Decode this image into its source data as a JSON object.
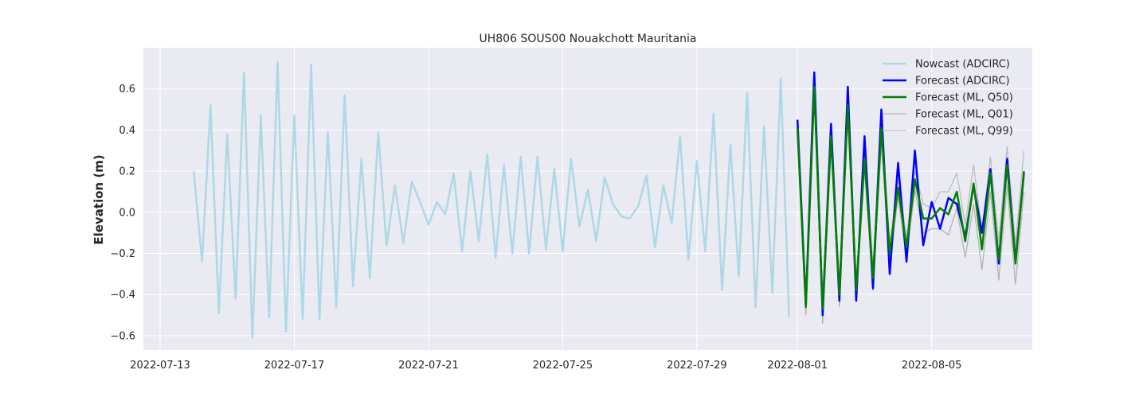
{
  "chart_data": {
    "type": "line",
    "title": "UH806 SOUS00 Nouakchott Mauritania",
    "xlabel": "",
    "ylabel": "Elevation (m)",
    "x_range": [
      "2022-07-12T12:00",
      "2022-08-08T00:00"
    ],
    "ylim": [
      -0.67,
      0.8
    ],
    "grid": true,
    "legend_position": "top-right",
    "x_ticks": [
      "2022-07-13",
      "2022-07-17",
      "2022-07-21",
      "2022-07-25",
      "2022-07-29",
      "2022-08-01",
      "2022-08-05"
    ],
    "y_ticks": [
      -0.6,
      -0.4,
      -0.2,
      0.0,
      0.2,
      0.4,
      0.6
    ],
    "y_tick_labels": [
      "−0.6",
      "−0.4",
      "−0.2",
      "0.0",
      "0.2",
      "0.4",
      "0.6"
    ],
    "colors": {
      "plot_background": "#eaeaf2",
      "grid": "#ffffff"
    },
    "series": [
      {
        "name": "Nowcast (ADCIRC)",
        "color": "#add8e6",
        "width": 2.5,
        "x": [
          "2022-07-14T00:00",
          "2022-07-14T06:00",
          "2022-07-14T12:00",
          "2022-07-14T18:00",
          "2022-07-15T00:00",
          "2022-07-15T06:00",
          "2022-07-15T12:00",
          "2022-07-15T18:00",
          "2022-07-16T00:00",
          "2022-07-16T06:00",
          "2022-07-16T12:00",
          "2022-07-16T18:00",
          "2022-07-17T00:00",
          "2022-07-17T06:00",
          "2022-07-17T12:00",
          "2022-07-17T18:00",
          "2022-07-18T00:00",
          "2022-07-18T06:00",
          "2022-07-18T12:00",
          "2022-07-18T18:00",
          "2022-07-19T00:00",
          "2022-07-19T06:00",
          "2022-07-19T12:00",
          "2022-07-19T18:00",
          "2022-07-20T00:00",
          "2022-07-20T06:00",
          "2022-07-20T12:00",
          "2022-07-20T18:00",
          "2022-07-21T00:00",
          "2022-07-21T06:00",
          "2022-07-21T12:00",
          "2022-07-21T18:00",
          "2022-07-22T00:00",
          "2022-07-22T06:00",
          "2022-07-22T12:00",
          "2022-07-22T18:00",
          "2022-07-23T00:00",
          "2022-07-23T06:00",
          "2022-07-23T12:00",
          "2022-07-23T18:00",
          "2022-07-24T00:00",
          "2022-07-24T06:00",
          "2022-07-24T12:00",
          "2022-07-24T18:00",
          "2022-07-25T00:00",
          "2022-07-25T06:00",
          "2022-07-25T12:00",
          "2022-07-25T18:00",
          "2022-07-26T00:00",
          "2022-07-26T06:00",
          "2022-07-26T12:00",
          "2022-07-26T18:00",
          "2022-07-27T00:00",
          "2022-07-27T06:00",
          "2022-07-27T12:00",
          "2022-07-27T18:00",
          "2022-07-28T00:00",
          "2022-07-28T06:00",
          "2022-07-28T12:00",
          "2022-07-28T18:00",
          "2022-07-29T00:00",
          "2022-07-29T06:00",
          "2022-07-29T12:00",
          "2022-07-29T18:00",
          "2022-07-30T00:00",
          "2022-07-30T06:00",
          "2022-07-30T12:00",
          "2022-07-30T18:00",
          "2022-07-31T00:00",
          "2022-07-31T06:00",
          "2022-07-31T12:00",
          "2022-07-31T18:00"
        ],
        "values": [
          0.2,
          -0.24,
          0.52,
          -0.49,
          0.38,
          -0.42,
          0.68,
          -0.61,
          0.47,
          -0.51,
          0.73,
          -0.58,
          0.47,
          -0.52,
          0.72,
          -0.52,
          0.39,
          -0.46,
          0.57,
          -0.36,
          0.26,
          -0.32,
          0.39,
          -0.16,
          0.13,
          -0.15,
          0.15,
          0.05,
          -0.06,
          0.05,
          -0.01,
          0.19,
          -0.19,
          0.2,
          -0.14,
          0.28,
          -0.22,
          0.23,
          -0.2,
          0.27,
          -0.2,
          0.27,
          -0.18,
          0.21,
          -0.19,
          0.26,
          -0.07,
          0.11,
          -0.14,
          0.17,
          0.04,
          -0.02,
          -0.03,
          0.03,
          0.18,
          -0.17,
          0.13,
          -0.05,
          0.37,
          -0.23,
          0.25,
          -0.19,
          0.48,
          -0.38,
          0.33,
          -0.31,
          0.58,
          -0.46,
          0.42,
          -0.39,
          0.65,
          -0.51
        ]
      },
      {
        "name": "Forecast (ADCIRC)",
        "color": "#0000ff",
        "width": 2.5,
        "x": [
          "2022-08-01T00:00",
          "2022-08-01T06:00",
          "2022-08-01T12:00",
          "2022-08-01T18:00",
          "2022-08-02T00:00",
          "2022-08-02T06:00",
          "2022-08-02T12:00",
          "2022-08-02T18:00",
          "2022-08-03T00:00",
          "2022-08-03T06:00",
          "2022-08-03T12:00",
          "2022-08-03T18:00",
          "2022-08-04T00:00",
          "2022-08-04T06:00",
          "2022-08-04T12:00",
          "2022-08-04T18:00",
          "2022-08-05T00:00",
          "2022-08-05T06:00",
          "2022-08-05T12:00",
          "2022-08-05T18:00",
          "2022-08-06T00:00",
          "2022-08-06T06:00",
          "2022-08-06T12:00",
          "2022-08-06T18:00",
          "2022-08-07T00:00",
          "2022-08-07T06:00",
          "2022-08-07T12:00",
          "2022-08-07T18:00"
        ],
        "values": [
          0.45,
          -0.45,
          0.68,
          -0.5,
          0.43,
          -0.43,
          0.61,
          -0.43,
          0.37,
          -0.37,
          0.5,
          -0.3,
          0.24,
          -0.24,
          0.3,
          -0.16,
          0.05,
          -0.08,
          0.07,
          0.04,
          -0.12,
          0.13,
          -0.1,
          0.21,
          -0.25,
          0.26,
          -0.24,
          0.19
        ]
      },
      {
        "name": "Forecast (ML, Q50)",
        "color": "#008000",
        "width": 2.5,
        "x": [
          "2022-08-01T00:00",
          "2022-08-01T06:00",
          "2022-08-01T12:00",
          "2022-08-01T18:00",
          "2022-08-02T00:00",
          "2022-08-02T06:00",
          "2022-08-02T12:00",
          "2022-08-02T18:00",
          "2022-08-03T00:00",
          "2022-08-03T06:00",
          "2022-08-03T12:00",
          "2022-08-03T18:00",
          "2022-08-04T00:00",
          "2022-08-04T06:00",
          "2022-08-04T12:00",
          "2022-08-04T18:00",
          "2022-08-05T00:00",
          "2022-08-05T06:00",
          "2022-08-05T12:00",
          "2022-08-05T18:00",
          "2022-08-06T00:00",
          "2022-08-06T06:00",
          "2022-08-06T12:00",
          "2022-08-06T18:00",
          "2022-08-07T00:00",
          "2022-08-07T06:00",
          "2022-08-07T12:00",
          "2022-08-07T18:00"
        ],
        "values": [
          0.41,
          -0.46,
          0.61,
          -0.47,
          0.37,
          -0.4,
          0.52,
          -0.38,
          0.26,
          -0.32,
          0.41,
          -0.2,
          0.12,
          -0.17,
          0.16,
          -0.03,
          -0.03,
          0.02,
          -0.01,
          0.1,
          -0.14,
          0.14,
          -0.18,
          0.19,
          -0.23,
          0.23,
          -0.25,
          0.2
        ]
      },
      {
        "name": "Forecast (ML, Q01)",
        "color": "#b3b3b3",
        "width": 1.3,
        "x": [
          "2022-08-01T00:00",
          "2022-08-01T06:00",
          "2022-08-01T12:00",
          "2022-08-01T18:00",
          "2022-08-02T00:00",
          "2022-08-02T06:00",
          "2022-08-02T12:00",
          "2022-08-02T18:00",
          "2022-08-03T00:00",
          "2022-08-03T06:00",
          "2022-08-03T12:00",
          "2022-08-03T18:00",
          "2022-08-04T00:00",
          "2022-08-04T06:00",
          "2022-08-04T12:00",
          "2022-08-04T18:00",
          "2022-08-05T00:00",
          "2022-08-05T06:00",
          "2022-08-05T12:00",
          "2022-08-05T18:00",
          "2022-08-06T00:00",
          "2022-08-06T06:00",
          "2022-08-06T12:00",
          "2022-08-06T18:00",
          "2022-08-07T00:00",
          "2022-08-07T06:00",
          "2022-08-07T12:00",
          "2022-08-07T18:00"
        ],
        "values": [
          0.36,
          -0.5,
          0.56,
          -0.54,
          0.32,
          -0.46,
          0.47,
          -0.43,
          0.21,
          -0.38,
          0.33,
          -0.25,
          0.07,
          -0.22,
          0.11,
          -0.1,
          -0.08,
          -0.08,
          -0.11,
          0.02,
          -0.22,
          0.04,
          -0.28,
          0.1,
          -0.33,
          0.13,
          -0.35,
          0.1
        ]
      },
      {
        "name": "Forecast (ML, Q99)",
        "color": "#bdbdbd",
        "width": 1.3,
        "x": [
          "2022-08-01T00:00",
          "2022-08-01T06:00",
          "2022-08-01T12:00",
          "2022-08-01T18:00",
          "2022-08-02T00:00",
          "2022-08-02T06:00",
          "2022-08-02T12:00",
          "2022-08-02T18:00",
          "2022-08-03T00:00",
          "2022-08-03T06:00",
          "2022-08-03T12:00",
          "2022-08-03T18:00",
          "2022-08-04T00:00",
          "2022-08-04T06:00",
          "2022-08-04T12:00",
          "2022-08-04T18:00",
          "2022-08-05T00:00",
          "2022-08-05T06:00",
          "2022-08-05T12:00",
          "2022-08-05T18:00",
          "2022-08-06T00:00",
          "2022-08-06T06:00",
          "2022-08-06T12:00",
          "2022-08-06T18:00",
          "2022-08-07T00:00",
          "2022-08-07T06:00",
          "2022-08-07T12:00",
          "2022-08-07T18:00"
        ],
        "values": [
          0.44,
          -0.42,
          0.66,
          -0.4,
          0.41,
          -0.34,
          0.56,
          -0.33,
          0.3,
          -0.26,
          0.45,
          -0.15,
          0.16,
          -0.12,
          0.2,
          0.04,
          0.02,
          0.1,
          0.1,
          0.19,
          -0.06,
          0.23,
          -0.09,
          0.27,
          -0.14,
          0.32,
          -0.16,
          0.3
        ]
      }
    ]
  }
}
